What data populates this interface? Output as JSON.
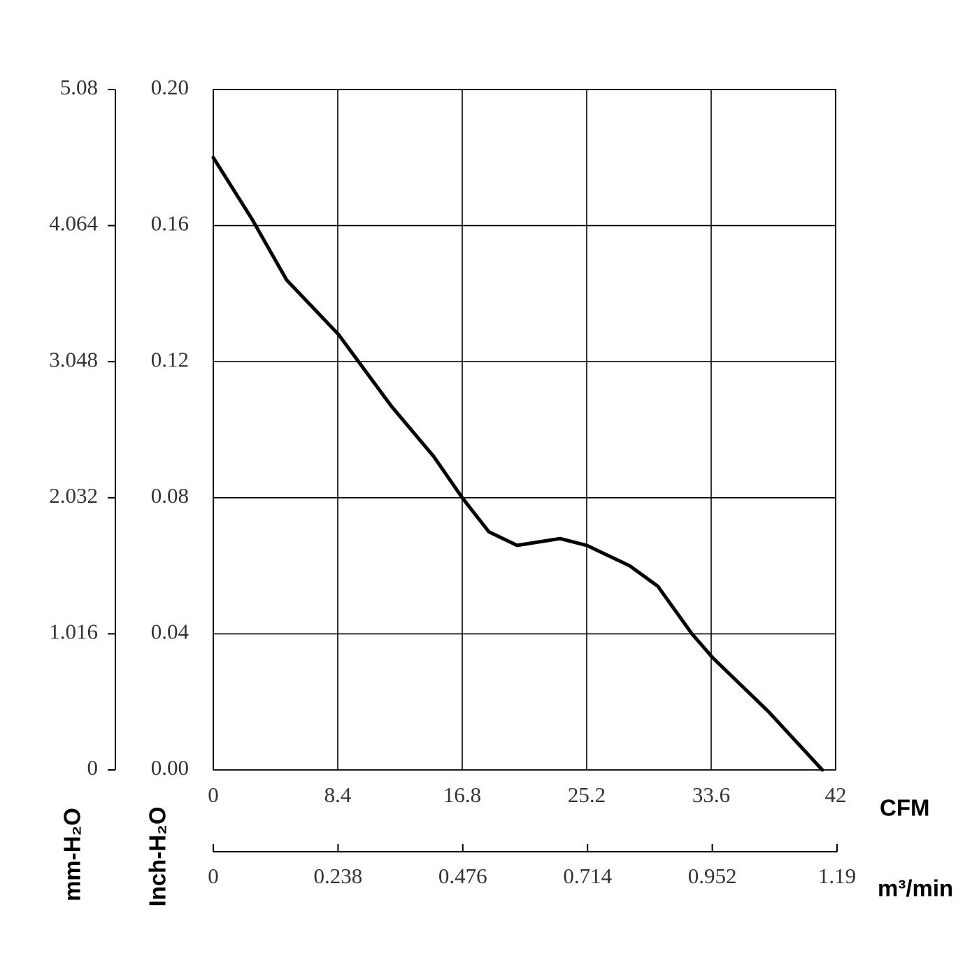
{
  "chart_data": {
    "type": "line",
    "x_label": "CFM",
    "x2_label": "m³/min",
    "y_label": "Inch-H₂O",
    "y2_label": "mm-H₂O",
    "x": [
      0,
      2.6,
      4.95,
      8.45,
      12.0,
      14.9,
      16.8,
      18.6,
      20.5,
      23.4,
      25.2,
      28.1,
      30.0,
      32.3,
      33.7,
      37.5,
      41.1
    ],
    "values": [
      0.18,
      0.162,
      0.144,
      0.128,
      0.107,
      0.092,
      0.08,
      0.07,
      0.066,
      0.068,
      0.066,
      0.06,
      0.054,
      0.04,
      0.033,
      0.017,
      0
    ],
    "color": "#000000",
    "xlim": [
      0,
      42
    ],
    "xticks": [
      0,
      8.4,
      16.8,
      25.2,
      33.6,
      42
    ],
    "x2lim": [
      0,
      1.19
    ],
    "x2ticks": [
      0,
      0.238,
      0.476,
      0.714,
      0.952,
      1.19
    ],
    "ylim": [
      0,
      0.2
    ],
    "yticks": [
      {
        "value": 0,
        "label": "0.00"
      },
      0.04,
      0.08,
      0.12,
      0.16,
      {
        "value": 0.2,
        "label": "0.20"
      }
    ],
    "y2lim": [
      0,
      5.08
    ],
    "y2ticks": [
      0,
      1.016,
      2.032,
      3.048,
      4.064,
      5.08
    ],
    "grid": true
  }
}
